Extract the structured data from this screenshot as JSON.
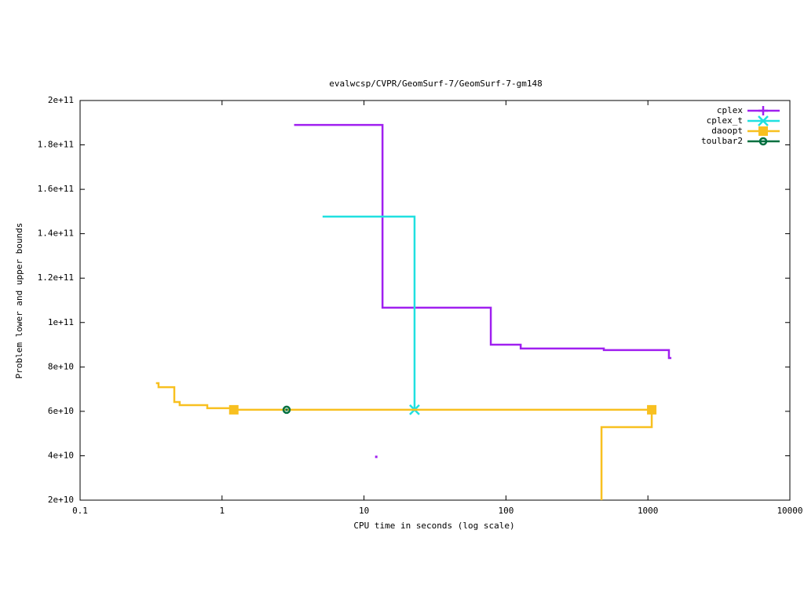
{
  "chart_data": {
    "type": "line",
    "title": "evalwcsp/CVPR/GeomSurf-7/GeomSurf-7-gm148",
    "x_label": "CPU time in seconds (log scale)",
    "y_label": "Problem lower and upper bounds",
    "xscale": "log",
    "xlim": [
      0.1,
      10000
    ],
    "xticks": [
      0.1,
      1,
      10,
      100,
      1000,
      10000
    ],
    "ylim": [
      20000000000.0,
      200000000000.0
    ],
    "yticks": [
      {
        "value": 20000000000.0,
        "label": "2e+10"
      },
      {
        "value": 40000000000.0,
        "label": "4e+10"
      },
      {
        "value": 60000000000.0,
        "label": "6e+10"
      },
      {
        "value": 80000000000.0,
        "label": "8e+10"
      },
      {
        "value": 100000000000.0,
        "label": "1e+11"
      },
      {
        "value": 120000000000.0,
        "label": "1.2e+11"
      },
      {
        "value": 140000000000.0,
        "label": "1.4e+11"
      },
      {
        "value": 160000000000.0,
        "label": "1.6e+11"
      },
      {
        "value": 180000000000.0,
        "label": "1.8e+11"
      },
      {
        "value": 200000000000.0,
        "label": "2e+11"
      }
    ],
    "legend": "top-right",
    "series": [
      {
        "name": "cplex",
        "color": "#a020f0",
        "marker": "plus",
        "x": [
          3.27,
          13.5,
          13.5,
          78.2,
          78.2,
          127,
          127,
          489,
          489,
          1406,
          1406,
          1440,
          null,
          12.2
        ],
        "values": [
          189000000000.0,
          189000000000.0,
          106700000000.0,
          106700000000.0,
          90000000000.0,
          90000000000.0,
          88300000000.0,
          88300000000.0,
          87600000000.0,
          87600000000.0,
          84000000000.0,
          84000000000.0,
          null,
          39500000000.0
        ],
        "markers": {
          "x": [],
          "values": []
        }
      },
      {
        "name": "cplex_t",
        "color": "#20e0e0",
        "marker": "cross",
        "x": [
          5.19,
          22.7,
          22.7
        ],
        "values": [
          147700000000.0,
          147700000000.0,
          60700000000.0
        ],
        "markers": {
          "x": [
            22.7
          ],
          "values": [
            60700000000.0
          ]
        }
      },
      {
        "name": "daoopt",
        "color": "#f8c020",
        "marker": "square",
        "x": [
          0.348,
          0.357,
          0.357,
          0.461,
          0.461,
          0.503,
          0.503,
          0.787,
          0.787,
          1.21,
          1.21,
          1064,
          1064,
          471,
          471
        ],
        "values": [
          72700000000.0,
          72700000000.0,
          70900000000.0,
          70900000000.0,
          64200000000.0,
          64200000000.0,
          62800000000.0,
          62800000000.0,
          61400000000.0,
          61400000000.0,
          60700000000.0,
          60700000000.0,
          52900000000.0,
          52900000000.0,
          20000000000.0
        ],
        "markers": {
          "x": [
            1.21,
            1064
          ],
          "values": [
            60700000000.0,
            60700000000.0
          ]
        }
      },
      {
        "name": "toulbar2",
        "color": "#007040",
        "marker": "circle",
        "x": [
          2.85
        ],
        "values": [
          60700000000.0
        ],
        "markers": {
          "x": [
            2.85
          ],
          "values": [
            60700000000.0
          ]
        }
      }
    ]
  }
}
